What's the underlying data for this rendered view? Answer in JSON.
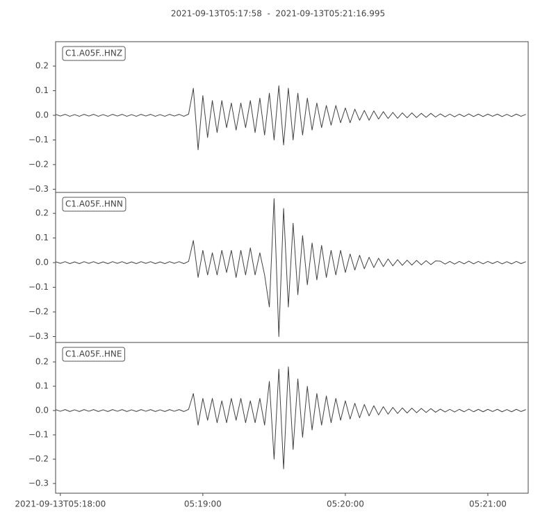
{
  "chart_data": [
    {
      "type": "line",
      "title": "2021-09-13T05:17:58  -  2021-09-13T05:21:16.995",
      "label": "C1.A05F..HNZ",
      "color": "#404040",
      "xlim": [
        0,
        198.995
      ],
      "ylim": [
        -0.313,
        0.299
      ],
      "yticks": [
        {
          "value": -0.3,
          "label": "−0.3"
        },
        {
          "value": -0.2,
          "label": "−0.2"
        },
        {
          "value": -0.1,
          "label": "−0.1"
        },
        {
          "value": 0,
          "label": "0.0"
        },
        0.1,
        0.2
      ],
      "x": [
        0,
        2,
        4,
        6,
        8,
        10,
        12,
        14,
        16,
        18,
        20,
        22,
        24,
        26,
        28,
        30,
        32,
        34,
        36,
        38,
        40,
        42,
        44,
        46,
        48,
        50,
        52,
        54,
        56,
        58,
        60,
        62,
        64,
        66,
        68,
        70,
        72,
        74,
        76,
        78,
        80,
        82,
        84,
        86,
        88,
        90,
        92,
        94,
        96,
        98,
        100,
        102,
        104,
        106,
        108,
        110,
        112,
        114,
        116,
        118,
        120,
        122,
        124,
        126,
        128,
        130,
        132,
        134,
        136,
        138,
        140,
        142,
        144,
        146,
        148,
        150,
        152,
        154,
        156,
        158,
        160,
        162,
        164,
        166,
        168,
        170,
        172,
        174,
        176,
        178,
        180,
        182,
        184,
        186,
        188,
        190,
        192,
        194,
        196,
        198
      ],
      "values": [
        0.004,
        -0.003,
        0.004,
        -0.004,
        0.003,
        -0.004,
        0.004,
        -0.003,
        0.004,
        -0.004,
        0.003,
        -0.004,
        0.004,
        -0.003,
        0.004,
        -0.004,
        0.003,
        -0.004,
        0.004,
        -0.003,
        0.004,
        -0.004,
        0.003,
        -0.004,
        0.004,
        -0.003,
        0.004,
        -0.004,
        0.005,
        0.11,
        -0.14,
        0.08,
        -0.09,
        0.06,
        -0.07,
        0.06,
        -0.05,
        0.05,
        -0.06,
        0.05,
        -0.05,
        0.06,
        -0.07,
        0.07,
        -0.08,
        0.09,
        -0.1,
        0.12,
        -0.12,
        0.11,
        -0.1,
        0.09,
        -0.08,
        0.07,
        -0.06,
        0.05,
        -0.05,
        0.04,
        -0.04,
        0.04,
        -0.03,
        0.03,
        -0.03,
        0.025,
        -0.02,
        0.02,
        -0.02,
        0.018,
        -0.015,
        0.015,
        -0.013,
        0.012,
        -0.012,
        0.01,
        -0.01,
        0.01,
        -0.009,
        0.008,
        -0.008,
        0.008,
        -0.007,
        0.006,
        -0.006,
        0.005,
        -0.006,
        0.005,
        -0.005,
        0.006,
        -0.005,
        0.005,
        -0.005,
        0.005,
        -0.004,
        0.005,
        -0.005,
        0.004,
        -0.005,
        0.005,
        -0.004,
        0.004
      ]
    },
    {
      "type": "line",
      "label": "C1.A05F..HNN",
      "color": "#404040",
      "xlim": [
        0,
        198.995
      ],
      "ylim": [
        -0.324,
        0.285
      ],
      "yticks": [
        {
          "value": -0.3,
          "label": "−0.3"
        },
        {
          "value": -0.2,
          "label": "−0.2"
        },
        {
          "value": -0.1,
          "label": "−0.1"
        },
        {
          "value": 0,
          "label": "0.0"
        },
        0.1,
        0.2
      ],
      "x": [
        0,
        2,
        4,
        6,
        8,
        10,
        12,
        14,
        16,
        18,
        20,
        22,
        24,
        26,
        28,
        30,
        32,
        34,
        36,
        38,
        40,
        42,
        44,
        46,
        48,
        50,
        52,
        54,
        56,
        58,
        60,
        62,
        64,
        66,
        68,
        70,
        72,
        74,
        76,
        78,
        80,
        82,
        84,
        86,
        88,
        90,
        92,
        94,
        96,
        98,
        100,
        102,
        104,
        106,
        108,
        110,
        112,
        114,
        116,
        118,
        120,
        122,
        124,
        126,
        128,
        130,
        132,
        134,
        136,
        138,
        140,
        142,
        144,
        146,
        148,
        150,
        152,
        154,
        156,
        158,
        160,
        162,
        164,
        166,
        168,
        170,
        172,
        174,
        176,
        178,
        180,
        182,
        184,
        186,
        188,
        190,
        192,
        194,
        196,
        198
      ],
      "values": [
        0.004,
        -0.003,
        0.004,
        -0.004,
        0.003,
        -0.004,
        0.004,
        -0.003,
        0.004,
        -0.004,
        0.003,
        -0.004,
        0.004,
        -0.003,
        0.004,
        -0.004,
        0.003,
        -0.004,
        0.004,
        -0.003,
        0.004,
        -0.004,
        0.003,
        -0.004,
        0.004,
        -0.003,
        0.004,
        -0.004,
        0.005,
        0.09,
        -0.06,
        0.05,
        -0.05,
        0.04,
        -0.05,
        0.05,
        -0.04,
        0.05,
        -0.06,
        0.05,
        -0.05,
        0.06,
        -0.05,
        0.04,
        -0.05,
        -0.18,
        0.26,
        -0.3,
        0.22,
        -0.18,
        0.16,
        -0.13,
        0.11,
        -0.09,
        0.08,
        -0.07,
        0.07,
        -0.06,
        0.05,
        -0.05,
        0.05,
        -0.04,
        0.035,
        -0.03,
        0.03,
        -0.025,
        0.022,
        -0.02,
        0.018,
        -0.016,
        0.015,
        -0.013,
        0.012,
        -0.011,
        0.01,
        -0.01,
        0.009,
        -0.009,
        0.008,
        -0.008,
        0.007,
        0.006,
        -0.006,
        0.005,
        -0.006,
        0.005,
        -0.005,
        0.006,
        -0.005,
        0.005,
        -0.005,
        0.005,
        -0.004,
        0.005,
        -0.005,
        0.004,
        -0.005,
        0.005,
        -0.004,
        0.004
      ]
    },
    {
      "type": "line",
      "label": "C1.A05F..HNE",
      "color": "#404040",
      "xlim": [
        0,
        198.995
      ],
      "ylim": [
        -0.34,
        0.28
      ],
      "yticks": [
        {
          "value": -0.3,
          "label": "−0.3"
        },
        {
          "value": -0.2,
          "label": "−0.2"
        },
        {
          "value": -0.1,
          "label": "−0.1"
        },
        {
          "value": 0,
          "label": "0.0"
        },
        0.1,
        0.2
      ],
      "xticks": [
        {
          "value": 2,
          "label": "2021-09-13T05:18:00"
        },
        {
          "value": 62,
          "label": "05:19:00"
        },
        {
          "value": 122,
          "label": "05:20:00"
        },
        {
          "value": 182,
          "label": "05:21:00"
        }
      ],
      "x": [
        0,
        2,
        4,
        6,
        8,
        10,
        12,
        14,
        16,
        18,
        20,
        22,
        24,
        26,
        28,
        30,
        32,
        34,
        36,
        38,
        40,
        42,
        44,
        46,
        48,
        50,
        52,
        54,
        56,
        58,
        60,
        62,
        64,
        66,
        68,
        70,
        72,
        74,
        76,
        78,
        80,
        82,
        84,
        86,
        88,
        90,
        92,
        94,
        96,
        98,
        100,
        102,
        104,
        106,
        108,
        110,
        112,
        114,
        116,
        118,
        120,
        122,
        124,
        126,
        128,
        130,
        132,
        134,
        136,
        138,
        140,
        142,
        144,
        146,
        148,
        150,
        152,
        154,
        156,
        158,
        160,
        162,
        164,
        166,
        168,
        170,
        172,
        174,
        176,
        178,
        180,
        182,
        184,
        186,
        188,
        190,
        192,
        194,
        196,
        198
      ],
      "values": [
        0.004,
        -0.003,
        0.004,
        -0.004,
        0.003,
        -0.004,
        0.004,
        -0.003,
        0.004,
        -0.004,
        0.003,
        -0.004,
        0.004,
        -0.003,
        0.004,
        -0.004,
        0.003,
        -0.004,
        0.004,
        -0.003,
        0.004,
        -0.004,
        0.003,
        -0.004,
        0.004,
        -0.003,
        0.004,
        -0.004,
        0.005,
        0.07,
        -0.06,
        0.05,
        -0.04,
        0.05,
        -0.05,
        0.04,
        -0.05,
        0.05,
        -0.04,
        0.05,
        -0.05,
        0.04,
        -0.05,
        0.05,
        -0.06,
        0.12,
        -0.2,
        0.17,
        -0.24,
        0.18,
        -0.16,
        0.13,
        -0.11,
        0.1,
        -0.08,
        0.07,
        -0.06,
        0.06,
        -0.05,
        0.05,
        -0.04,
        0.04,
        -0.035,
        0.03,
        -0.03,
        0.025,
        -0.022,
        0.02,
        -0.018,
        0.016,
        -0.015,
        0.013,
        -0.012,
        0.011,
        -0.01,
        0.01,
        -0.009,
        0.009,
        -0.008,
        0.008,
        -0.007,
        0.006,
        -0.006,
        0.005,
        -0.006,
        0.005,
        -0.005,
        0.006,
        -0.005,
        0.005,
        -0.005,
        0.005,
        -0.004,
        0.005,
        -0.005,
        0.004,
        -0.005,
        0.005,
        -0.004,
        0.004
      ]
    }
  ]
}
